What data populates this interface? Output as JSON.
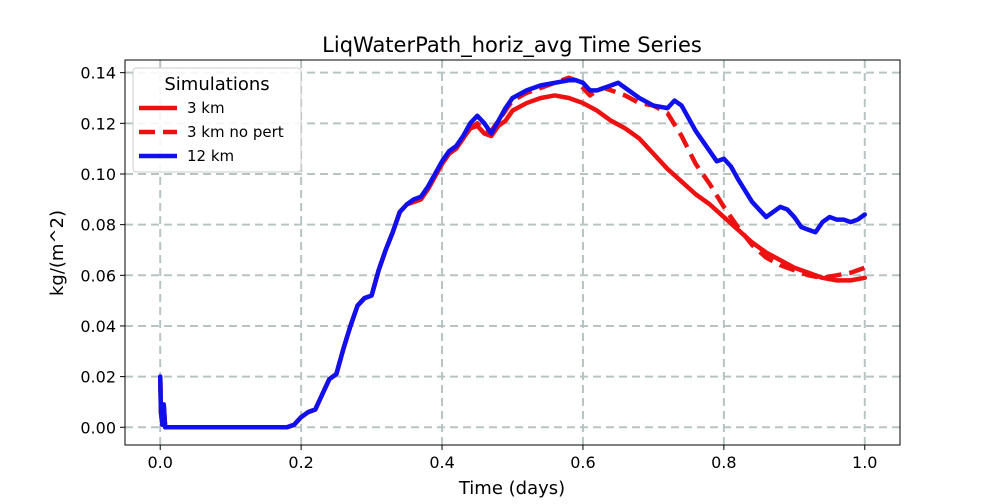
{
  "chart_data": {
    "type": "line",
    "title": "LiqWaterPath_horiz_avg Time Series",
    "xlabel": "Time (days)",
    "ylabel": "kg/(m^2)",
    "xlim": [
      -0.05,
      1.05
    ],
    "ylim": [
      -0.007,
      0.145
    ],
    "xticks": [
      0.0,
      0.2,
      0.4,
      0.6,
      0.8,
      1.0
    ],
    "xtick_labels": [
      "0.0",
      "0.2",
      "0.4",
      "0.6",
      "0.8",
      "1.0"
    ],
    "yticks": [
      0.0,
      0.02,
      0.04,
      0.06,
      0.08,
      0.1,
      0.12,
      0.14
    ],
    "ytick_labels": [
      "0.00",
      "0.02",
      "0.04",
      "0.06",
      "0.08",
      "0.10",
      "0.12",
      "0.14"
    ],
    "grid": true,
    "legend": {
      "title": "Simulations",
      "placement": "top-left"
    },
    "series": [
      {
        "name": "3 km",
        "color": "#ee1111",
        "linestyle": "solid",
        "x": [
          0.0,
          0.001,
          0.003,
          0.005,
          0.007,
          0.01,
          0.05,
          0.1,
          0.15,
          0.18,
          0.19,
          0.2,
          0.21,
          0.22,
          0.23,
          0.24,
          0.25,
          0.26,
          0.27,
          0.28,
          0.29,
          0.3,
          0.31,
          0.32,
          0.33,
          0.34,
          0.35,
          0.36,
          0.37,
          0.38,
          0.39,
          0.4,
          0.41,
          0.42,
          0.43,
          0.44,
          0.45,
          0.46,
          0.47,
          0.48,
          0.49,
          0.5,
          0.52,
          0.54,
          0.56,
          0.58,
          0.6,
          0.62,
          0.64,
          0.66,
          0.68,
          0.7,
          0.72,
          0.74,
          0.76,
          0.78,
          0.8,
          0.82,
          0.84,
          0.86,
          0.88,
          0.9,
          0.92,
          0.94,
          0.96,
          0.98,
          1.0
        ],
        "values": [
          0.02,
          0.006,
          0.001,
          0.009,
          0.0,
          0.0,
          0.0,
          0.0,
          0.0,
          0.0,
          0.001,
          0.004,
          0.006,
          0.007,
          0.013,
          0.019,
          0.021,
          0.031,
          0.04,
          0.048,
          0.051,
          0.052,
          0.062,
          0.07,
          0.077,
          0.085,
          0.088,
          0.089,
          0.09,
          0.094,
          0.099,
          0.104,
          0.108,
          0.11,
          0.114,
          0.118,
          0.119,
          0.116,
          0.115,
          0.119,
          0.121,
          0.125,
          0.128,
          0.13,
          0.131,
          0.13,
          0.128,
          0.125,
          0.121,
          0.118,
          0.114,
          0.108,
          0.102,
          0.097,
          0.092,
          0.088,
          0.083,
          0.078,
          0.073,
          0.069,
          0.066,
          0.063,
          0.061,
          0.059,
          0.058,
          0.058,
          0.059
        ]
      },
      {
        "name": "3 km no pert",
        "color": "#ee1111",
        "linestyle": "dashed",
        "x": [
          0.0,
          0.001,
          0.003,
          0.005,
          0.007,
          0.01,
          0.05,
          0.1,
          0.15,
          0.18,
          0.19,
          0.2,
          0.21,
          0.22,
          0.23,
          0.24,
          0.25,
          0.26,
          0.27,
          0.28,
          0.29,
          0.3,
          0.31,
          0.32,
          0.33,
          0.34,
          0.35,
          0.36,
          0.37,
          0.38,
          0.39,
          0.4,
          0.41,
          0.42,
          0.43,
          0.44,
          0.45,
          0.46,
          0.47,
          0.48,
          0.49,
          0.5,
          0.52,
          0.54,
          0.56,
          0.58,
          0.59,
          0.6,
          0.61,
          0.62,
          0.63,
          0.64,
          0.66,
          0.68,
          0.7,
          0.72,
          0.74,
          0.76,
          0.78,
          0.8,
          0.82,
          0.84,
          0.86,
          0.88,
          0.9,
          0.92,
          0.94,
          0.96,
          0.98,
          1.0
        ],
        "values": [
          0.02,
          0.006,
          0.001,
          0.009,
          0.0,
          0.0,
          0.0,
          0.0,
          0.0,
          0.0,
          0.001,
          0.004,
          0.006,
          0.007,
          0.013,
          0.019,
          0.021,
          0.031,
          0.04,
          0.048,
          0.051,
          0.052,
          0.062,
          0.07,
          0.077,
          0.085,
          0.088,
          0.089,
          0.09,
          0.094,
          0.099,
          0.104,
          0.108,
          0.11,
          0.114,
          0.118,
          0.12,
          0.117,
          0.117,
          0.121,
          0.125,
          0.129,
          0.132,
          0.134,
          0.136,
          0.138,
          0.137,
          0.134,
          0.131,
          0.133,
          0.134,
          0.133,
          0.131,
          0.128,
          0.127,
          0.124,
          0.115,
          0.104,
          0.096,
          0.087,
          0.079,
          0.072,
          0.067,
          0.064,
          0.062,
          0.06,
          0.059,
          0.06,
          0.061,
          0.063
        ]
      },
      {
        "name": "12 km",
        "color": "#1010ee",
        "linestyle": "solid",
        "x": [
          0.0,
          0.001,
          0.003,
          0.005,
          0.007,
          0.01,
          0.05,
          0.1,
          0.15,
          0.18,
          0.19,
          0.2,
          0.21,
          0.22,
          0.23,
          0.24,
          0.25,
          0.26,
          0.27,
          0.28,
          0.29,
          0.3,
          0.31,
          0.32,
          0.33,
          0.34,
          0.35,
          0.36,
          0.37,
          0.38,
          0.39,
          0.4,
          0.41,
          0.42,
          0.43,
          0.44,
          0.45,
          0.46,
          0.47,
          0.48,
          0.49,
          0.5,
          0.52,
          0.54,
          0.56,
          0.58,
          0.59,
          0.6,
          0.61,
          0.62,
          0.63,
          0.64,
          0.65,
          0.66,
          0.68,
          0.7,
          0.72,
          0.73,
          0.74,
          0.76,
          0.78,
          0.79,
          0.8,
          0.81,
          0.82,
          0.84,
          0.86,
          0.87,
          0.88,
          0.89,
          0.9,
          0.91,
          0.92,
          0.93,
          0.94,
          0.95,
          0.96,
          0.97,
          0.98,
          0.99,
          1.0
        ],
        "values": [
          0.02,
          0.006,
          0.001,
          0.009,
          0.0,
          0.0,
          0.0,
          0.0,
          0.0,
          0.0,
          0.001,
          0.004,
          0.006,
          0.007,
          0.013,
          0.019,
          0.021,
          0.031,
          0.04,
          0.048,
          0.051,
          0.052,
          0.062,
          0.07,
          0.077,
          0.085,
          0.088,
          0.09,
          0.091,
          0.095,
          0.1,
          0.105,
          0.109,
          0.111,
          0.115,
          0.12,
          0.123,
          0.12,
          0.116,
          0.121,
          0.126,
          0.13,
          0.133,
          0.135,
          0.136,
          0.137,
          0.137,
          0.136,
          0.133,
          0.133,
          0.134,
          0.135,
          0.136,
          0.134,
          0.13,
          0.127,
          0.126,
          0.129,
          0.127,
          0.117,
          0.109,
          0.105,
          0.106,
          0.103,
          0.098,
          0.089,
          0.083,
          0.085,
          0.087,
          0.086,
          0.083,
          0.079,
          0.078,
          0.077,
          0.081,
          0.083,
          0.082,
          0.082,
          0.081,
          0.082,
          0.084
        ]
      }
    ]
  }
}
